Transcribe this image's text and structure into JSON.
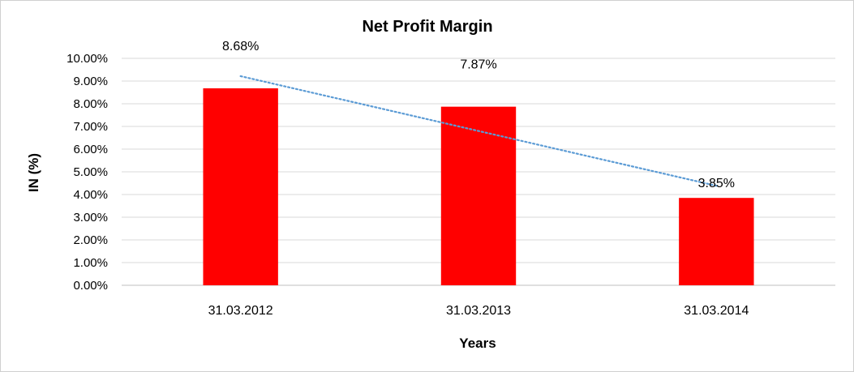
{
  "chart_data": {
    "type": "bar",
    "title": "Net Profit Margin",
    "xlabel": "Years",
    "ylabel": "IN (%)",
    "categories": [
      "31.03.2012",
      "31.03.2013",
      "31.03.2014"
    ],
    "values": [
      8.68,
      7.87,
      3.85
    ],
    "data_labels": [
      "8.68%",
      "7.87%",
      "3.85%"
    ],
    "ylim": [
      0,
      10
    ],
    "y_ticks": [
      {
        "value": 0,
        "label": "0.00%"
      },
      {
        "value": 1,
        "label": "1.00%"
      },
      {
        "value": 2,
        "label": "2.00%"
      },
      {
        "value": 3,
        "label": "3.00%"
      },
      {
        "value": 4,
        "label": "4.00%"
      },
      {
        "value": 5,
        "label": "5.00%"
      },
      {
        "value": 6,
        "label": "6.00%"
      },
      {
        "value": 7,
        "label": "7.00%"
      },
      {
        "value": 8,
        "label": "8.00%"
      },
      {
        "value": 9,
        "label": "9.00%"
      },
      {
        "value": 10,
        "label": "10.00%"
      }
    ],
    "trendline": {
      "type": "linear",
      "style": "dotted",
      "color": "#5b9bd5"
    },
    "grid": true,
    "legend": "none",
    "colors": {
      "bar": "#ff0000",
      "grid": "#d9d9d9",
      "axis": "#bfbfbf",
      "trend": "#5b9bd5"
    }
  }
}
